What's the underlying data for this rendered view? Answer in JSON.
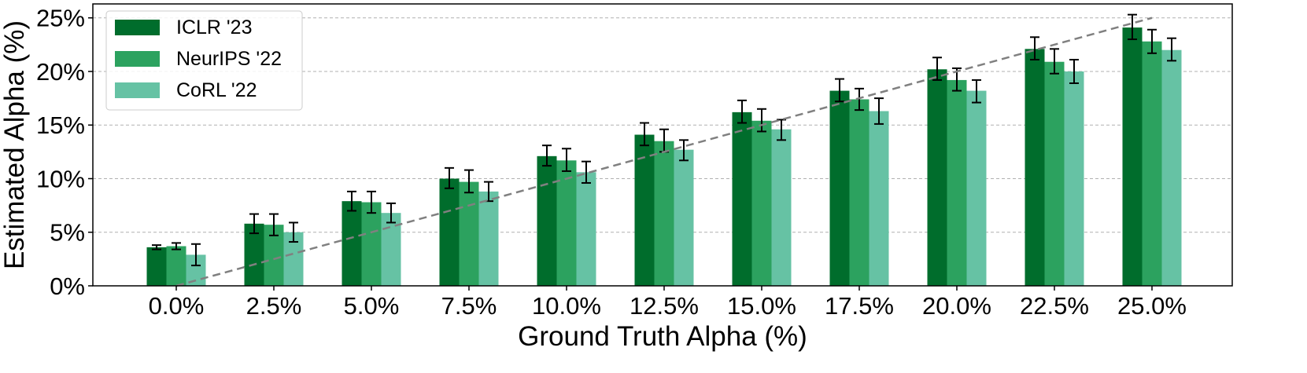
{
  "chart_data": {
    "type": "bar",
    "xlabel": "Ground Truth Alpha (%)",
    "ylabel": "Estimated Alpha (%)",
    "categories": [
      "0.0%",
      "2.5%",
      "5.0%",
      "7.5%",
      "10.0%",
      "12.5%",
      "15.0%",
      "17.5%",
      "20.0%",
      "22.5%",
      "25.0%"
    ],
    "x_values": [
      0,
      2.5,
      5,
      7.5,
      10,
      12.5,
      15,
      17.5,
      20,
      22.5,
      25
    ],
    "ylim": [
      0,
      26.3
    ],
    "yticks": [
      0,
      5,
      10,
      15,
      20,
      25
    ],
    "ytick_labels": [
      "0%",
      "5%",
      "10%",
      "15%",
      "20%",
      "25%"
    ],
    "grid": "horizontal dashed",
    "legend_position": "top-left",
    "series": [
      {
        "name": "ICLR '23",
        "color": "#006d2c",
        "values": [
          3.6,
          5.8,
          7.9,
          10.0,
          12.1,
          14.1,
          16.2,
          18.2,
          20.2,
          22.1,
          24.1
        ],
        "err_low": [
          3.4,
          4.9,
          7.0,
          9.1,
          11.2,
          13.1,
          15.2,
          17.2,
          19.2,
          21.1,
          23.0
        ],
        "err_high": [
          3.8,
          6.7,
          8.8,
          11.0,
          13.1,
          15.2,
          17.3,
          19.3,
          21.3,
          23.2,
          25.3
        ]
      },
      {
        "name": "NeurIPS '22",
        "color": "#2ca25f",
        "values": [
          3.7,
          5.7,
          7.8,
          9.7,
          11.7,
          13.5,
          15.4,
          17.4,
          19.2,
          20.9,
          22.8
        ],
        "err_low": [
          3.4,
          4.7,
          6.8,
          8.7,
          10.7,
          12.5,
          14.4,
          16.4,
          18.2,
          19.8,
          21.7
        ],
        "err_high": [
          4.0,
          6.7,
          8.8,
          10.8,
          12.8,
          14.6,
          16.5,
          18.4,
          20.3,
          22.1,
          23.9
        ]
      },
      {
        "name": "CoRL '22",
        "color": "#66c2a4",
        "values": [
          2.9,
          5.0,
          6.8,
          8.8,
          10.6,
          12.7,
          14.6,
          16.3,
          18.2,
          20.0,
          22.0
        ],
        "err_low": [
          1.9,
          4.1,
          5.9,
          7.9,
          9.6,
          11.7,
          13.6,
          15.1,
          17.1,
          18.9,
          21.0
        ],
        "err_high": [
          3.9,
          5.9,
          7.7,
          9.7,
          11.6,
          13.6,
          15.5,
          17.5,
          19.2,
          21.1,
          23.1
        ]
      }
    ],
    "reference_line": {
      "style": "dashed",
      "color": "#808080",
      "x": [
        0,
        25
      ],
      "y": [
        0,
        25
      ]
    }
  }
}
